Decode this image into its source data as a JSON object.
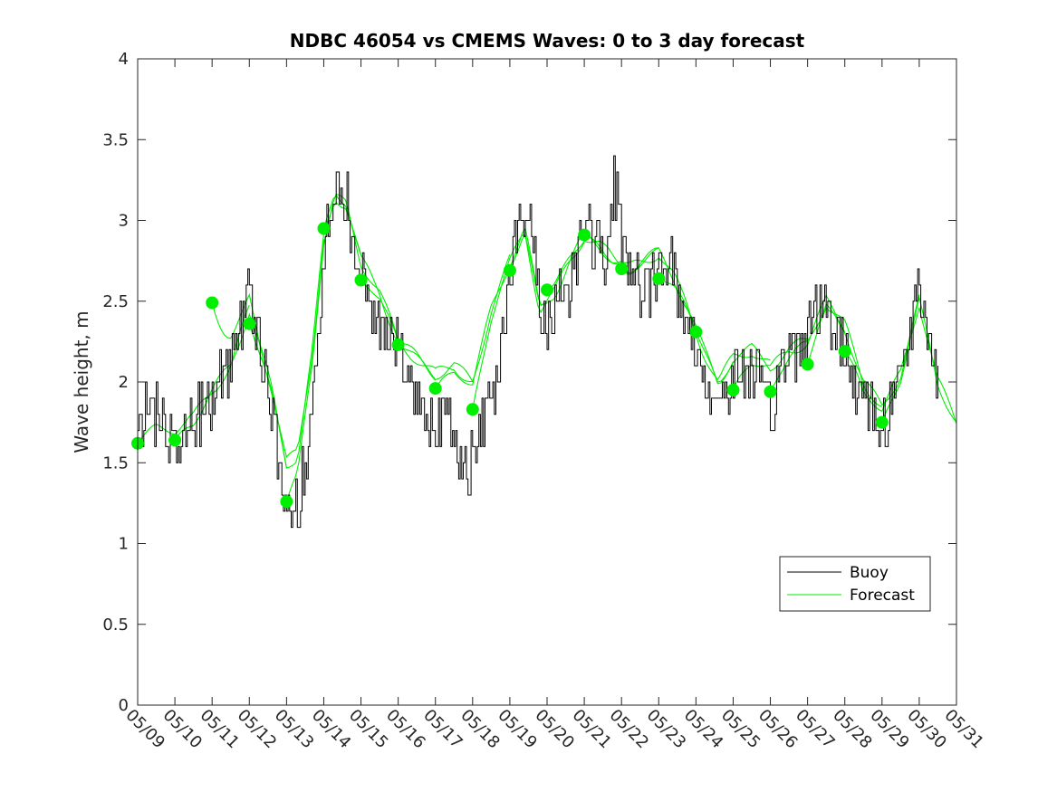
{
  "chart_data": {
    "type": "line",
    "title": "NDBC 46054 vs CMEMS Waves: 0 to 3 day forecast",
    "xlabel": "",
    "ylabel": "Wave height, m",
    "ylim": [
      0,
      4
    ],
    "yticks": [
      "0",
      "0.5",
      "1",
      "1.5",
      "2",
      "2.5",
      "3",
      "3.5",
      "4"
    ],
    "xlim": [
      0,
      22
    ],
    "xticks": [
      "05/09",
      "05/10",
      "05/11",
      "05/12",
      "05/13",
      "05/14",
      "05/15",
      "05/16",
      "05/17",
      "05/18",
      "05/19",
      "05/20",
      "05/21",
      "05/22",
      "05/23",
      "05/24",
      "05/25",
      "05/26",
      "05/27",
      "05/28",
      "05/29",
      "05/30",
      "05/31"
    ],
    "grid": false,
    "legend": {
      "position": "lower-right",
      "entries": [
        "Buoy",
        "Forecast"
      ]
    },
    "colors": {
      "buoy": "#000000",
      "forecast": "#00ee00"
    },
    "buoy_key_points": [
      [
        0,
        1.65
      ],
      [
        0.3,
        1.95
      ],
      [
        0.5,
        1.8
      ],
      [
        0.7,
        1.7
      ],
      [
        1.0,
        1.6
      ],
      [
        1.5,
        1.75
      ],
      [
        2.0,
        1.9
      ],
      [
        2.5,
        2.1
      ],
      [
        3.0,
        2.6
      ],
      [
        3.3,
        2.2
      ],
      [
        3.6,
        1.8
      ],
      [
        3.8,
        1.5
      ],
      [
        4.0,
        1.2
      ],
      [
        4.3,
        1.2
      ],
      [
        4.5,
        1.5
      ],
      [
        4.8,
        2.1
      ],
      [
        5.0,
        2.9
      ],
      [
        5.3,
        3.15
      ],
      [
        5.6,
        3.1
      ],
      [
        5.8,
        2.9
      ],
      [
        6.0,
        2.7
      ],
      [
        6.3,
        2.5
      ],
      [
        6.6,
        2.3
      ],
      [
        7.0,
        2.2
      ],
      [
        7.3,
        2.0
      ],
      [
        7.6,
        1.85
      ],
      [
        8.0,
        1.75
      ],
      [
        8.3,
        1.8
      ],
      [
        8.6,
        1.55
      ],
      [
        9.0,
        1.5
      ],
      [
        9.3,
        1.8
      ],
      [
        9.6,
        2.0
      ],
      [
        10.0,
        2.7
      ],
      [
        10.3,
        3.0
      ],
      [
        10.6,
        2.9
      ],
      [
        10.9,
        2.3
      ],
      [
        11.2,
        2.5
      ],
      [
        11.6,
        2.6
      ],
      [
        12.0,
        3.0
      ],
      [
        12.3,
        2.85
      ],
      [
        12.6,
        2.7
      ],
      [
        12.8,
        3.2
      ],
      [
        13.0,
        2.9
      ],
      [
        13.3,
        2.7
      ],
      [
        13.6,
        2.5
      ],
      [
        14.0,
        2.7
      ],
      [
        14.3,
        2.8
      ],
      [
        14.6,
        2.45
      ],
      [
        15.0,
        2.2
      ],
      [
        15.3,
        2.0
      ],
      [
        15.6,
        1.9
      ],
      [
        16.0,
        2.0
      ],
      [
        16.3,
        2.1
      ],
      [
        16.6,
        2.0
      ],
      [
        17.0,
        1.8
      ],
      [
        17.3,
        2.1
      ],
      [
        17.6,
        2.2
      ],
      [
        18.0,
        2.3
      ],
      [
        18.3,
        2.5
      ],
      [
        18.6,
        2.4
      ],
      [
        19.0,
        2.2
      ],
      [
        19.3,
        2.0
      ],
      [
        19.6,
        1.9
      ],
      [
        20.0,
        1.7
      ],
      [
        20.3,
        1.9
      ],
      [
        20.6,
        2.2
      ],
      [
        21.0,
        2.6
      ],
      [
        21.3,
        2.2
      ],
      [
        21.5,
        2.05
      ]
    ],
    "forecast_base_points": [
      [
        0,
        1.7
      ],
      [
        0.5,
        1.75
      ],
      [
        1.0,
        1.72
      ],
      [
        1.5,
        1.78
      ],
      [
        2.0,
        1.95
      ],
      [
        2.5,
        2.1
      ],
      [
        3.0,
        2.45
      ],
      [
        3.3,
        2.2
      ],
      [
        3.6,
        1.95
      ],
      [
        4.0,
        1.5
      ],
      [
        4.3,
        1.55
      ],
      [
        4.7,
        2.2
      ],
      [
        5.0,
        2.9
      ],
      [
        5.3,
        3.15
      ],
      [
        5.6,
        3.1
      ],
      [
        6.0,
        2.75
      ],
      [
        6.5,
        2.55
      ],
      [
        7.0,
        2.25
      ],
      [
        7.5,
        2.15
      ],
      [
        8.0,
        2.05
      ],
      [
        8.5,
        2.1
      ],
      [
        9.0,
        2.0
      ],
      [
        9.5,
        2.45
      ],
      [
        10.0,
        2.75
      ],
      [
        10.4,
        2.95
      ],
      [
        10.8,
        2.45
      ],
      [
        11.2,
        2.55
      ],
      [
        11.6,
        2.75
      ],
      [
        12.0,
        2.9
      ],
      [
        12.4,
        2.85
      ],
      [
        12.8,
        2.75
      ],
      [
        13.2,
        2.7
      ],
      [
        13.6,
        2.75
      ],
      [
        14.0,
        2.8
      ],
      [
        14.4,
        2.65
      ],
      [
        14.8,
        2.45
      ],
      [
        15.2,
        2.2
      ],
      [
        15.6,
        2.0
      ],
      [
        16.0,
        2.15
      ],
      [
        16.5,
        2.2
      ],
      [
        17.0,
        2.1
      ],
      [
        17.5,
        2.2
      ],
      [
        18.0,
        2.25
      ],
      [
        18.5,
        2.5
      ],
      [
        19.0,
        2.35
      ],
      [
        19.5,
        2.0
      ],
      [
        20.0,
        1.85
      ],
      [
        20.5,
        2.05
      ],
      [
        21.0,
        2.5
      ],
      [
        21.5,
        2.0
      ],
      [
        22.0,
        1.75
      ]
    ],
    "forecast_start_markers": [
      [
        0,
        1.62
      ],
      [
        1,
        1.64
      ],
      [
        2,
        2.49
      ],
      [
        3,
        2.36
      ],
      [
        4,
        1.26
      ],
      [
        5,
        2.95
      ],
      [
        6,
        2.63
      ],
      [
        7,
        2.23
      ],
      [
        8,
        1.96
      ],
      [
        9,
        1.83
      ],
      [
        10,
        2.69
      ],
      [
        11,
        2.57
      ],
      [
        12,
        2.91
      ],
      [
        13,
        2.7
      ],
      [
        14,
        2.64
      ],
      [
        15,
        2.31
      ],
      [
        16,
        1.95
      ],
      [
        17,
        1.94
      ],
      [
        18,
        2.11
      ],
      [
        19,
        2.19
      ],
      [
        20,
        1.75
      ]
    ]
  }
}
